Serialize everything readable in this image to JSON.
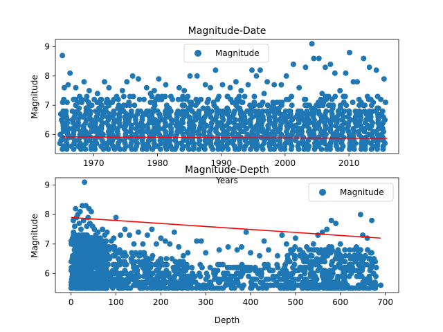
{
  "colors": {
    "points": "#1f77b4",
    "trend": "#ff0000",
    "axes": "#000000"
  },
  "chart_data": [
    {
      "type": "scatter",
      "title": "Magnitude-Date",
      "xlabel": "Years",
      "ylabel": "Magnitude",
      "xlim": [
        1964.0,
        2017.8
      ],
      "ylim": [
        5.35,
        9.25
      ],
      "xticks": [
        1970,
        1980,
        1990,
        2000,
        2010
      ],
      "yticks": [
        6,
        7,
        8,
        9
      ],
      "legend": {
        "label": "Magnitude",
        "placement": "upper center"
      },
      "grid": false,
      "series": [
        {
          "name": "Magnitude",
          "dense_band": {
            "x_range": [
              1965,
              2016
            ],
            "y_range": [
              5.5,
              6.8
            ]
          },
          "points": [
            [
              1965.1,
              8.7
            ],
            [
              1966.3,
              8.1
            ],
            [
              1965.4,
              7.6
            ],
            [
              1966.0,
              7.7
            ],
            [
              1967.2,
              7.6
            ],
            [
              1968.5,
              7.8
            ],
            [
              1969.3,
              7.5
            ],
            [
              1970.6,
              7.4
            ],
            [
              1971.7,
              7.8
            ],
            [
              1972.4,
              7.6
            ],
            [
              1973.6,
              7.3
            ],
            [
              1974.5,
              7.5
            ],
            [
              1975.2,
              7.8
            ],
            [
              1976.1,
              8.0
            ],
            [
              1977.0,
              7.9
            ],
            [
              1978.3,
              7.6
            ],
            [
              1979.5,
              7.5
            ],
            [
              1980.2,
              7.9
            ],
            [
              1981.3,
              7.7
            ],
            [
              1983.4,
              7.6
            ],
            [
              1984.2,
              7.5
            ],
            [
              1985.1,
              8.0
            ],
            [
              1986.2,
              8.0
            ],
            [
              1987.5,
              7.7
            ],
            [
              1988.3,
              7.6
            ],
            [
              1989.1,
              8.2
            ],
            [
              1990.2,
              7.7
            ],
            [
              1991.4,
              7.6
            ],
            [
              1992.3,
              7.8
            ],
            [
              1993.1,
              7.5
            ],
            [
              1994.2,
              7.7
            ],
            [
              1994.8,
              8.2
            ],
            [
              1995.5,
              8.0
            ],
            [
              1996.1,
              8.2
            ],
            [
              1997.2,
              7.8
            ],
            [
              1998.3,
              7.7
            ],
            [
              1999.4,
              7.7
            ],
            [
              2000.2,
              8.0
            ],
            [
              2001.3,
              8.4
            ],
            [
              2002.2,
              7.6
            ],
            [
              2003.2,
              8.3
            ],
            [
              2004.2,
              9.1
            ],
            [
              2004.5,
              8.6
            ],
            [
              2005.3,
              8.6
            ],
            [
              2006.3,
              8.3
            ],
            [
              2007.1,
              8.4
            ],
            [
              2007.8,
              8.1
            ],
            [
              2009.5,
              8.1
            ],
            [
              2010.1,
              8.8
            ],
            [
              2010.7,
              7.8
            ],
            [
              2011.3,
              7.8
            ],
            [
              2012.3,
              8.6
            ],
            [
              2013.2,
              8.3
            ],
            [
              2014.3,
              8.2
            ],
            [
              2015.5,
              7.9
            ],
            [
              1967.8,
              7.3
            ],
            [
              1970.1,
              7.2
            ],
            [
              1972.9,
              7.1
            ],
            [
              1978.9,
              7.4
            ],
            [
              1982.1,
              7.3
            ],
            [
              1986.8,
              7.2
            ],
            [
              1991.0,
              7.3
            ],
            [
              1996.7,
              7.4
            ],
            [
              2001.0,
              7.3
            ],
            [
              2005.8,
              7.4
            ],
            [
              2008.6,
              7.5
            ],
            [
              2012.9,
              7.3
            ],
            [
              2015.0,
              7.2
            ]
          ]
        }
      ],
      "trendline": {
        "x": [
          1965,
          2016
        ],
        "y": [
          5.92,
          5.87
        ]
      }
    },
    {
      "type": "scatter",
      "title": "Magnitude-Depth",
      "xlabel": "Depth",
      "ylabel": "Magnitude",
      "xlim": [
        -35,
        730
      ],
      "ylim": [
        5.35,
        9.25
      ],
      "xticks": [
        0,
        100,
        200,
        300,
        400,
        500,
        600,
        700
      ],
      "yticks": [
        6,
        7,
        8,
        9
      ],
      "legend": {
        "label": "Magnitude",
        "placement": "upper right"
      },
      "grid": false,
      "series": [
        {
          "name": "Magnitude",
          "points": [
            [
              30,
              9.1
            ],
            [
              10,
              8.2
            ],
            [
              20,
              8.1
            ],
            [
              25,
              8.3
            ],
            [
              33,
              8.3
            ],
            [
              40,
              8.2
            ],
            [
              45,
              8.1
            ],
            [
              15,
              8.0
            ],
            [
              5,
              7.8
            ],
            [
              8,
              7.6
            ],
            [
              12,
              7.9
            ],
            [
              18,
              7.7
            ],
            [
              22,
              7.5
            ],
            [
              28,
              7.8
            ],
            [
              35,
              7.6
            ],
            [
              38,
              7.9
            ],
            [
              42,
              7.7
            ],
            [
              48,
              7.6
            ],
            [
              52,
              7.5
            ],
            [
              55,
              7.3
            ],
            [
              60,
              7.4
            ],
            [
              65,
              7.2
            ],
            [
              70,
              7.5
            ],
            [
              75,
              7.3
            ],
            [
              80,
              7.4
            ],
            [
              90,
              7.1
            ],
            [
              95,
              7.2
            ],
            [
              100,
              7.9
            ],
            [
              110,
              7.3
            ],
            [
              120,
              7.5
            ],
            [
              130,
              7.3
            ],
            [
              140,
              7.0
            ],
            [
              150,
              7.4
            ],
            [
              160,
              7.0
            ],
            [
              170,
              7.3
            ],
            [
              180,
              7.5
            ],
            [
              190,
              7.0
            ],
            [
              200,
              7.2
            ],
            [
              210,
              7.1
            ],
            [
              220,
              7.0
            ],
            [
              230,
              7.4
            ],
            [
              240,
              6.9
            ],
            [
              250,
              6.6
            ],
            [
              260,
              6.7
            ],
            [
              280,
              7.1
            ],
            [
              290,
              7.1
            ],
            [
              300,
              6.7
            ],
            [
              330,
              6.8
            ],
            [
              350,
              6.9
            ],
            [
              370,
              6.8
            ],
            [
              380,
              6.9
            ],
            [
              390,
              7.4
            ],
            [
              400,
              6.7
            ],
            [
              420,
              6.6
            ],
            [
              430,
              7.1
            ],
            [
              440,
              6.8
            ],
            [
              460,
              6.6
            ],
            [
              470,
              7.3
            ],
            [
              480,
              7.0
            ],
            [
              490,
              6.7
            ],
            [
              500,
              7.2
            ],
            [
              510,
              6.8
            ],
            [
              520,
              6.6
            ],
            [
              530,
              6.8
            ],
            [
              540,
              7.0
            ],
            [
              550,
              7.3
            ],
            [
              560,
              7.4
            ],
            [
              570,
              7.5
            ],
            [
              580,
              7.8
            ],
            [
              590,
              7.7
            ],
            [
              600,
              7.0
            ],
            [
              610,
              6.8
            ],
            [
              620,
              6.6
            ],
            [
              630,
              6.5
            ],
            [
              645,
              8.0
            ],
            [
              650,
              7.3
            ],
            [
              660,
              7.2
            ],
            [
              670,
              7.8
            ],
            [
              680,
              6.2
            ],
            [
              690,
              5.6
            ],
            [
              60,
              6.5
            ],
            [
              120,
              6.3
            ],
            [
              170,
              6.0
            ],
            [
              230,
              5.9
            ],
            [
              270,
              6.0
            ],
            [
              320,
              5.8
            ],
            [
              360,
              6.2
            ],
            [
              410,
              6.1
            ],
            [
              450,
              5.9
            ],
            [
              510,
              6.2
            ],
            [
              560,
              6.0
            ],
            [
              610,
              5.9
            ],
            [
              660,
              5.8
            ],
            [
              20,
              6.6
            ],
            [
              85,
              6.8
            ],
            [
              140,
              6.4
            ]
          ]
        }
      ],
      "trendline": {
        "x": [
          0,
          690
        ],
        "y": [
          7.9,
          7.2
        ]
      }
    }
  ]
}
